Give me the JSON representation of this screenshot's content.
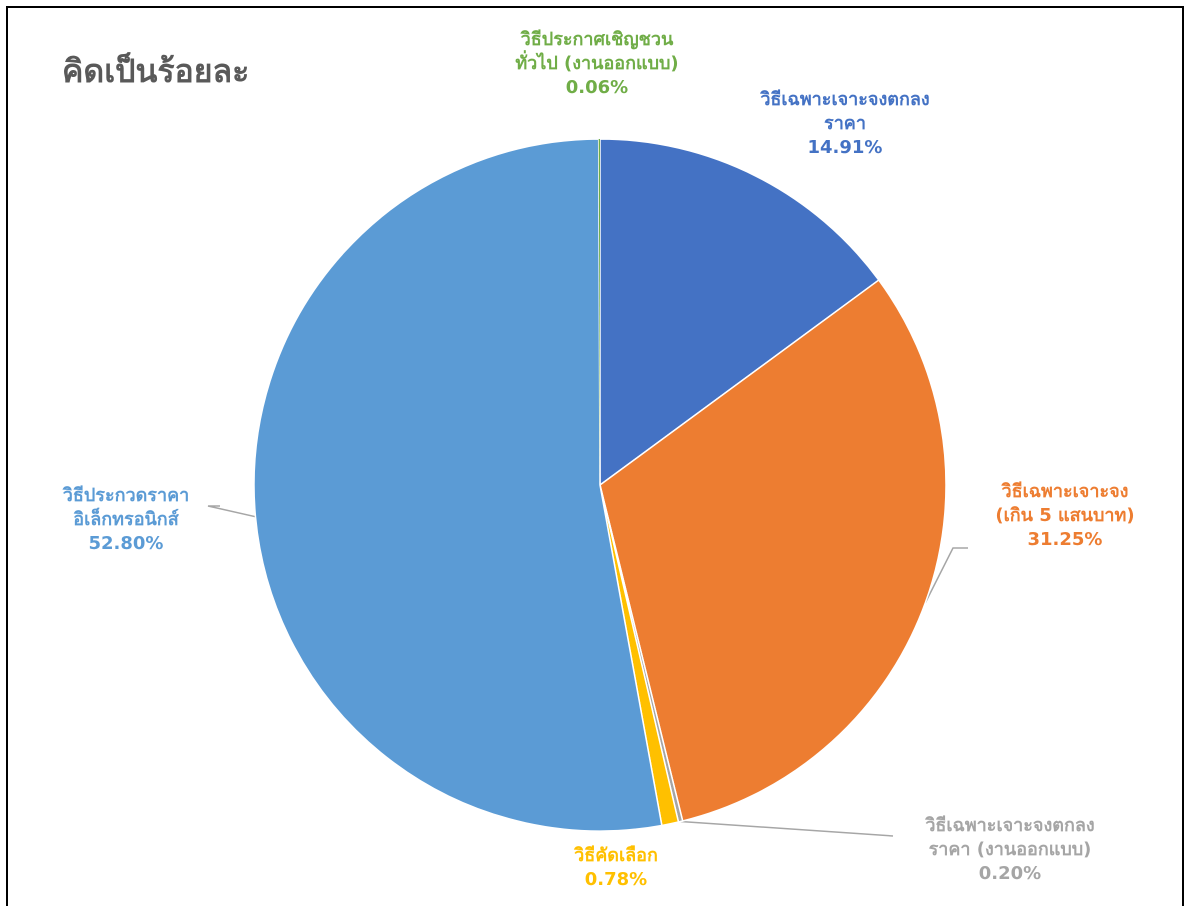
{
  "chart_data": {
    "type": "pie",
    "title": "คิดเป็นร้อยละ",
    "slices": [
      {
        "name": "วิธีเฉพาะเจาะจงตกลงราคา",
        "label_lines": [
          "วิธีเฉพาะเจาะจงตกลง",
          "ราคา"
        ],
        "value": 14.91,
        "value_label": "14.91%",
        "color": "#4472C4"
      },
      {
        "name": "วิธีเฉพาะเจาะจง (เกิน 5 แสนบาท)",
        "label_lines": [
          "วิธีเฉพาะเจาะจง",
          "(เกิน 5 แสนบาท)"
        ],
        "value": 31.25,
        "value_label": "31.25%",
        "color": "#ED7D31"
      },
      {
        "name": "วิธีเฉพาะเจาะจงตกลงราคา (งานออกแบบ)",
        "label_lines": [
          "วิธีเฉพาะเจาะจงตกลง",
          "ราคา (งานออกแบบ)"
        ],
        "value": 0.2,
        "value_label": "0.20%",
        "color": "#A5A5A5"
      },
      {
        "name": "วิธีคัดเลือก",
        "label_lines": [
          "วิธีคัดเลือก"
        ],
        "value": 0.78,
        "value_label": "0.78%",
        "color": "#FFC000"
      },
      {
        "name": "วิธีประกวดราคาอิเล็กทรอนิกส์",
        "label_lines": [
          "วิธีประกวดราคา",
          "อิเล็กทรอนิกส์"
        ],
        "value": 52.8,
        "value_label": "52.80%",
        "color": "#5B9BD5"
      },
      {
        "name": "วิธีประกาศเชิญชวนทั่วไป (งานออกแบบ)",
        "label_lines": [
          "วิธีประกาศเชิญชวน",
          "ทั่วไป (งานออกแบบ)"
        ],
        "value": 0.06,
        "value_label": "0.06%",
        "color": "#70AD47"
      }
    ],
    "label_text_colors": [
      "#4472C4",
      "#ED7D31",
      "#A5A5A5",
      "#FFC000",
      "#5B9BD5",
      "#70AD47"
    ],
    "leader_line_color": "#A6A6A6",
    "slice_border_color": "#FFFFFF",
    "title_color": "#595959",
    "start_angle": "12 o'clock",
    "direction": "clockwise",
    "legend": "none"
  }
}
